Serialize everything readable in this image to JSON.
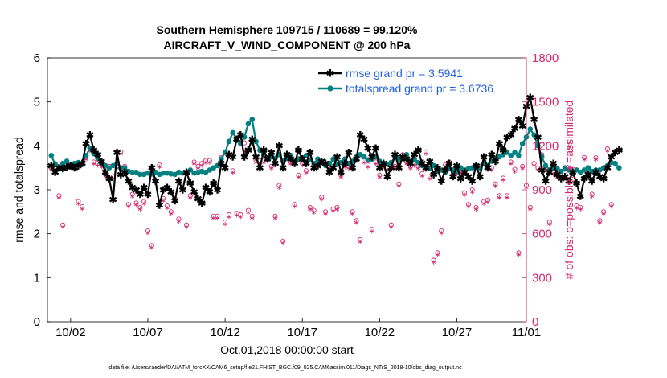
{
  "chart_data": {
    "type": "line",
    "title": "Southern Hemisphere 109715 / 110689 = 99.120%",
    "subtitle": "AIRCRAFT_V_WIND_COMPONENT @ 200 hPa",
    "xlabel": "Oct.01,2018 00:00:00 start",
    "ylabel": "rmse and totalspread",
    "y2label": "# of obs: o=possible; ∗=assimilated",
    "footer": "data file: /Users/raeder/DAI/ATM_forcXX/CAM6_setup/f.e21.FHIST_BGC.f09_025.CAM6assim.011/Diags_NTrS_2018-10/obs_diag_output.nc",
    "xlim": [
      0.5,
      31.5
    ],
    "ylim": [
      0,
      6
    ],
    "y2lim": [
      0,
      1800
    ],
    "xticks": [
      {
        "label": "10/02",
        "x": 2
      },
      {
        "label": "10/07",
        "x": 7
      },
      {
        "label": "10/12",
        "x": 12
      },
      {
        "label": "10/17",
        "x": 17
      },
      {
        "label": "10/22",
        "x": 22
      },
      {
        "label": "10/27",
        "x": 27
      },
      {
        "label": "11/01",
        "x": 32
      }
    ],
    "yticks": [
      "0",
      "1",
      "2",
      "3",
      "4",
      "5",
      "6"
    ],
    "y2ticks": [
      "0",
      "300",
      "600",
      "900",
      "1200",
      "1500",
      "1800"
    ],
    "legend_position": "top-right",
    "colors": {
      "rmse": "#000000",
      "spread": "#008080",
      "obs": "#d6286e"
    },
    "series": [
      {
        "name": "rmse grand pr = 3.5941",
        "t_start": 0.75,
        "t_step": 0.25,
        "values": [
          3.55,
          3.4,
          3.5,
          3.48,
          3.52,
          3.55,
          3.5,
          3.55,
          3.6,
          4.05,
          4.25,
          3.9,
          3.8,
          3.65,
          3.4,
          3.25,
          2.78,
          3.85,
          3.35,
          3.4,
          3.2,
          3.05,
          3.0,
          2.9,
          3.05,
          2.9,
          3.5,
          3.2,
          2.65,
          3.0,
          3.05,
          2.95,
          2.75,
          3.2,
          3.0,
          3.4,
          3.15,
          2.95,
          2.8,
          2.7,
          3.05,
          2.95,
          3.15,
          3.0,
          3.6,
          3.5,
          3.8,
          3.75,
          4.15,
          4.25,
          3.75,
          3.9,
          4.15,
          3.75,
          3.5,
          3.9,
          3.7,
          3.85,
          3.6,
          4.0,
          3.5,
          3.8,
          3.7,
          3.6,
          3.9,
          3.7,
          3.6,
          3.85,
          3.5,
          3.55,
          3.65,
          3.6,
          3.4,
          3.5,
          3.75,
          3.4,
          3.6,
          3.85,
          3.5,
          3.7,
          4.25,
          4.15,
          3.95,
          3.75,
          3.95,
          3.5,
          3.6,
          3.3,
          3.5,
          3.8,
          3.5,
          3.75,
          3.7,
          3.6,
          3.8,
          3.9,
          3.6,
          3.5,
          3.65,
          3.35,
          3.5,
          3.2,
          3.45,
          3.6,
          3.3,
          3.55,
          3.25,
          3.4,
          3.3,
          3.2,
          3.55,
          3.3,
          3.75,
          3.5,
          3.8,
          3.65,
          4.05,
          3.9,
          4.2,
          4.25,
          4.4,
          4.6,
          4.45,
          4.9,
          5.1,
          4.6,
          4.2,
          3.45,
          3.2,
          3.4,
          3.6,
          3.35,
          3.25,
          3.3,
          3.2,
          3.4,
          3.15,
          2.85,
          3.25,
          3.35,
          3.2,
          3.4,
          3.3,
          3.25,
          3.5,
          3.75,
          3.85,
          3.9
        ]
      },
      {
        "name": "totalspread grand pr = 3.6736",
        "t_start": 0.75,
        "t_step": 0.25,
        "values": [
          3.78,
          3.58,
          3.5,
          3.6,
          3.65,
          3.55,
          3.6,
          3.62,
          3.6,
          3.78,
          3.95,
          3.82,
          3.72,
          3.6,
          3.55,
          3.5,
          3.55,
          3.6,
          3.5,
          3.5,
          3.42,
          3.4,
          3.4,
          3.35,
          3.35,
          3.38,
          3.36,
          3.4,
          3.35,
          3.38,
          3.38,
          3.36,
          3.35,
          3.4,
          3.38,
          3.4,
          3.45,
          3.38,
          3.4,
          3.42,
          3.4,
          3.45,
          3.5,
          3.55,
          3.7,
          3.85,
          4.1,
          4.3,
          4.15,
          4.05,
          4.2,
          4.5,
          4.6,
          4.1,
          3.9,
          3.8,
          3.7,
          3.75,
          3.72,
          3.8,
          3.65,
          3.72,
          3.78,
          3.65,
          3.7,
          3.72,
          3.78,
          3.68,
          3.6,
          3.7,
          3.62,
          3.55,
          3.6,
          3.7,
          3.58,
          3.62,
          3.7,
          3.6,
          3.65,
          3.75,
          3.8,
          3.75,
          3.68,
          3.7,
          3.75,
          3.65,
          3.6,
          3.58,
          3.62,
          3.75,
          3.7,
          3.72,
          3.8,
          3.65,
          3.7,
          3.62,
          3.55,
          3.5,
          3.48,
          3.55,
          3.42,
          3.45,
          3.4,
          3.48,
          3.45,
          3.42,
          3.5,
          3.45,
          3.48,
          3.5,
          3.55,
          3.5,
          3.6,
          3.55,
          3.65,
          3.72,
          3.75,
          3.8,
          3.85,
          3.78,
          3.85,
          3.78,
          4.05,
          4.2,
          4.38,
          4.25,
          4.0,
          3.75,
          3.55,
          3.45,
          3.5,
          3.48,
          3.42,
          3.5,
          3.45,
          3.4,
          3.45,
          3.4,
          3.45,
          3.5,
          3.42,
          3.45,
          3.45,
          3.5,
          3.55,
          3.62,
          3.6,
          3.5
        ]
      }
    ],
    "obs": {
      "t_start": 0.75,
      "t_step": 0.25,
      "values": [
        1050,
        1080,
        860,
        660,
        null,
        null,
        null,
        820,
        785,
        1120,
        1180,
        1090,
        1080,
        1070,
        1005,
        1060,
        990,
        1060,
        1160,
        1060,
        800,
        870,
        810,
        780,
        820,
        620,
        520,
        null,
        1070,
        840,
        790,
        750,
        840,
        700,
        null,
        660,
        860,
        1090,
        1060,
        1080,
        1100,
        1100,
        720,
        720,
        1120,
        680,
        730,
        1030,
        740,
        730,
        1220,
        760,
        720,
        1100,
        1100,
        1100,
        1110,
        1060,
        720,
        930,
        550,
        1120,
        1090,
        800,
        1000,
        1080,
        1030,
        780,
        760,
        1080,
        850,
        750,
        1060,
        770,
        780,
        1000,
        1070,
        1060,
        750,
        690,
        560,
        1100,
        1070,
        630,
        1090,
        1000,
        1070,
        1050,
        660,
        1060,
        940,
        1140,
        1090,
        1060,
        1080,
        1060,
        1010,
        1160,
        990,
        420,
        470,
        620,
        1070,
        1090,
        1000,
        1020,
        1030,
        880,
        800,
        900,
        780,
        1060,
        820,
        830,
        1050,
        940,
        860,
        980,
        860,
        1090,
        1040,
        470,
        1060,
        930,
        780,
        1080,
        1050,
        1140,
        1050,
        680,
        1020,
        1000,
        1000,
        1050,
        1210,
        1040,
        790,
        780,
        1120,
        1030,
        870,
        1120,
        690,
        750,
        1180,
        800
      ],
      "assim": [
        1040,
        1070,
        850,
        650,
        null,
        null,
        null,
        810,
        775,
        1110,
        1170,
        1080,
        1070,
        1060,
        995,
        1050,
        980,
        1050,
        1150,
        1050,
        790,
        860,
        800,
        770,
        810,
        610,
        510,
        null,
        1060,
        830,
        780,
        740,
        830,
        690,
        null,
        650,
        850,
        1080,
        1050,
        1070,
        1090,
        1090,
        710,
        710,
        1110,
        670,
        720,
        1020,
        730,
        720,
        1160,
        750,
        710,
        1090,
        1090,
        1090,
        1100,
        1050,
        710,
        920,
        540,
        1110,
        1080,
        790,
        990,
        1070,
        1020,
        770,
        750,
        1070,
        840,
        740,
        1050,
        760,
        770,
        990,
        1060,
        1050,
        740,
        680,
        550,
        1090,
        1060,
        620,
        1080,
        990,
        1060,
        1040,
        650,
        1050,
        930,
        1130,
        1080,
        1050,
        1070,
        1050,
        1000,
        1150,
        980,
        410,
        460,
        610,
        1060,
        1080,
        990,
        1010,
        1020,
        870,
        790,
        890,
        770,
        1050,
        810,
        820,
        1040,
        930,
        850,
        970,
        850,
        1080,
        1030,
        460,
        1050,
        920,
        770,
        1070,
        1040,
        1130,
        1040,
        670,
        1010,
        990,
        990,
        1040,
        1200,
        1030,
        780,
        770,
        1110,
        1020,
        860,
        1110,
        680,
        740,
        1170,
        790
      ]
    }
  }
}
